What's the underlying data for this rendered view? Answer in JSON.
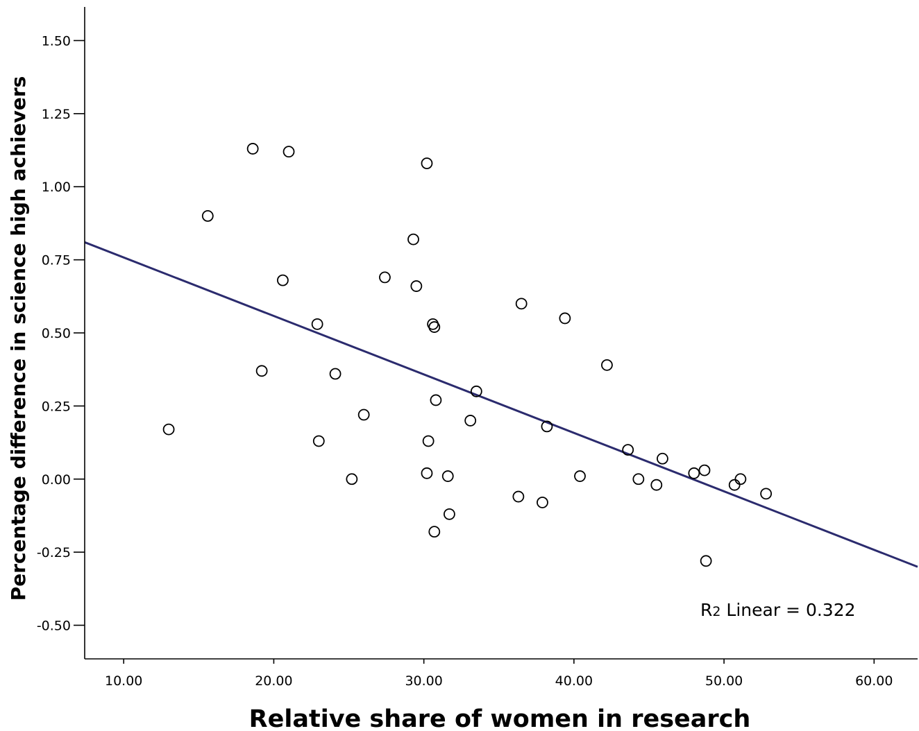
{
  "chart_data": {
    "type": "scatter",
    "title": "",
    "xlabel": "Relative share of women in research",
    "ylabel": "Percentage difference in science high achievers",
    "xlim": [
      7.4,
      62.9
    ],
    "ylim": [
      -0.615,
      1.615
    ],
    "xticks": [
      10,
      20,
      30,
      40,
      50,
      60
    ],
    "xtick_labels": [
      "10.00",
      "20.00",
      "30.00",
      "40.00",
      "50.00",
      "60.00"
    ],
    "yticks": [
      1.5,
      1.25,
      1.0,
      0.75,
      0.5,
      0.25,
      0.0,
      -0.25,
      -0.5
    ],
    "ytick_labels": [
      "1.50",
      "1.25",
      "1.00",
      "0.75",
      "0.50",
      "0.25",
      "0.00",
      "-0.25",
      "-0.50"
    ],
    "grid": false,
    "marker": "open-circle",
    "point_color": "#000000",
    "fit_line": {
      "type": "linear",
      "color": "#2b2b6e",
      "x": [
        7.4,
        62.9
      ],
      "y": [
        0.81,
        -0.3
      ]
    },
    "annotation": {
      "r_prefix": "R",
      "r_sub": "2",
      "text": " Linear = 0.322"
    },
    "points": [
      {
        "x": 13.0,
        "y": 0.17
      },
      {
        "x": 15.6,
        "y": 0.9
      },
      {
        "x": 18.6,
        "y": 1.13
      },
      {
        "x": 19.2,
        "y": 0.37
      },
      {
        "x": 20.6,
        "y": 0.68
      },
      {
        "x": 21.0,
        "y": 1.12
      },
      {
        "x": 22.9,
        "y": 0.53
      },
      {
        "x": 23.0,
        "y": 0.13
      },
      {
        "x": 24.1,
        "y": 0.36
      },
      {
        "x": 25.2,
        "y": 0.0
      },
      {
        "x": 26.0,
        "y": 0.22
      },
      {
        "x": 27.4,
        "y": 0.69
      },
      {
        "x": 29.3,
        "y": 0.82
      },
      {
        "x": 29.5,
        "y": 0.66
      },
      {
        "x": 30.2,
        "y": 1.08
      },
      {
        "x": 30.2,
        "y": 0.02
      },
      {
        "x": 30.3,
        "y": 0.13
      },
      {
        "x": 30.6,
        "y": 0.53
      },
      {
        "x": 30.7,
        "y": 0.52
      },
      {
        "x": 30.7,
        "y": -0.18
      },
      {
        "x": 30.8,
        "y": 0.27
      },
      {
        "x": 31.6,
        "y": 0.01
      },
      {
        "x": 31.7,
        "y": -0.12
      },
      {
        "x": 33.1,
        "y": 0.2
      },
      {
        "x": 33.5,
        "y": 0.3
      },
      {
        "x": 36.3,
        "y": -0.06
      },
      {
        "x": 36.5,
        "y": 0.6
      },
      {
        "x": 37.9,
        "y": -0.08
      },
      {
        "x": 38.2,
        "y": 0.18
      },
      {
        "x": 39.4,
        "y": 0.55
      },
      {
        "x": 40.4,
        "y": 0.01
      },
      {
        "x": 42.2,
        "y": 0.39
      },
      {
        "x": 43.6,
        "y": 0.1
      },
      {
        "x": 44.3,
        "y": 0.0
      },
      {
        "x": 45.5,
        "y": -0.02
      },
      {
        "x": 45.9,
        "y": 0.07
      },
      {
        "x": 48.0,
        "y": 0.02
      },
      {
        "x": 48.7,
        "y": 0.03
      },
      {
        "x": 48.8,
        "y": -0.28
      },
      {
        "x": 50.7,
        "y": -0.02
      },
      {
        "x": 51.1,
        "y": 0.0
      },
      {
        "x": 52.8,
        "y": -0.05
      }
    ]
  }
}
